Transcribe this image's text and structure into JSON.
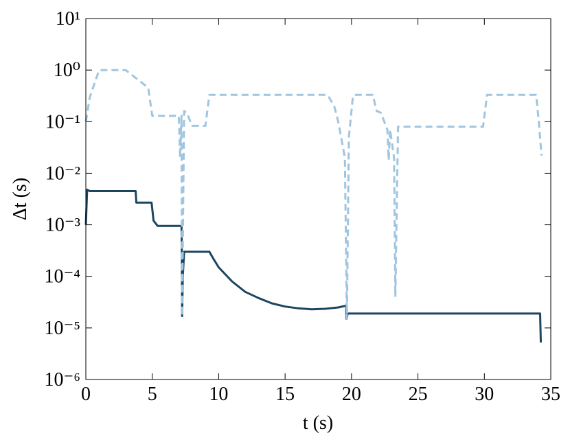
{
  "chart_data": {
    "type": "line",
    "x_label": "t (s)",
    "y_label": "Δt (s)",
    "xlim": [
      0,
      35
    ],
    "xticks": [
      0,
      5,
      10,
      15,
      20,
      25,
      30,
      35
    ],
    "ylim": [
      1e-06,
      10
    ],
    "log_y": true,
    "yticks": [
      {
        "value": 1e-06,
        "label": "10⁻⁶"
      },
      {
        "value": 1e-05,
        "label": "10⁻⁵"
      },
      {
        "value": 0.0001,
        "label": "10⁻⁴"
      },
      {
        "value": 0.001,
        "label": "10⁻³"
      },
      {
        "value": 0.01,
        "label": "10⁻²"
      },
      {
        "value": 0.1,
        "label": "10⁻¹"
      },
      {
        "value": 1,
        "label": "10⁰"
      },
      {
        "value": 10,
        "label": "10¹"
      }
    ],
    "series": [
      {
        "color": "#1b4560",
        "dash": false,
        "x": [
          0,
          0.1,
          0.3,
          3.75,
          3.8,
          4.95,
          5.1,
          5.4,
          7.2,
          7.22,
          7.25,
          7.3,
          7.4,
          9.3,
          9.6,
          10,
          11,
          12,
          13,
          14,
          15,
          16,
          17,
          18,
          19,
          19.6,
          19.62,
          19.65,
          19.7,
          34.2,
          34.25
        ],
        "values": [
          0.001,
          0.0048,
          0.0045,
          0.0045,
          0.0027,
          0.0027,
          0.0012,
          0.00095,
          0.00095,
          0.0004,
          1.7e-05,
          0.0001,
          0.0003,
          0.0003,
          0.00022,
          0.00015,
          8e-05,
          5e-05,
          3.8e-05,
          3e-05,
          2.6e-05,
          2.4e-05,
          2.3e-05,
          2.35e-05,
          2.5e-05,
          2.7e-05,
          1.5e-05,
          1.5e-05,
          1.9e-05,
          1.9e-05,
          5.2e-06
        ]
      },
      {
        "color": "#9fc5df",
        "dash": true,
        "x": [
          0,
          0.3,
          1,
          3,
          4.5,
          4.7,
          5,
          7,
          7.1,
          7.2,
          7.25,
          7.4,
          7.6,
          8,
          9,
          9.3,
          18.2,
          18.7,
          19,
          19.5,
          19.65,
          19.8,
          20.1,
          20.2,
          21.6,
          21.9,
          22.2,
          22.7,
          22.8,
          22.9,
          23.2,
          23.3,
          23.5,
          29.9,
          30.2,
          33.9,
          34.1,
          34.3
        ],
        "values": [
          0.1,
          0.3,
          1,
          1,
          0.5,
          0.45,
          0.13,
          0.13,
          0.02,
          0.13,
          1.7e-05,
          0.16,
          0.15,
          0.083,
          0.083,
          0.33,
          0.33,
          0.2,
          0.1,
          0.02,
          1.5e-05,
          0.05,
          0.3,
          0.33,
          0.33,
          0.16,
          0.15,
          0.07,
          0.018,
          0.07,
          0.02,
          4e-05,
          0.08,
          0.08,
          0.33,
          0.33,
          0.1,
          0.022
        ]
      }
    ]
  }
}
